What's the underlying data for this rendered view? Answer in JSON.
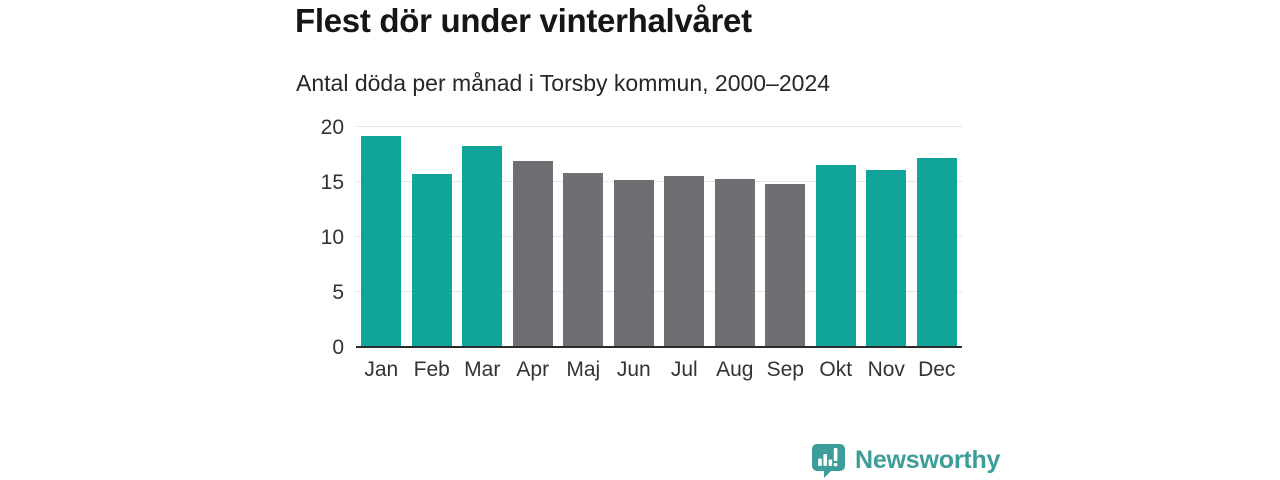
{
  "header": {
    "title": "Flest dör under vinterhalvåret",
    "subtitle": "Antal döda per månad i Torsby kommun, 2000–2024"
  },
  "chart_data": {
    "type": "bar",
    "title": "Flest dör under vinterhalvåret",
    "subtitle": "Antal döda per månad i Torsby kommun, 2000–2024",
    "categories": [
      "Jan",
      "Feb",
      "Mar",
      "Apr",
      "Maj",
      "Jun",
      "Jul",
      "Aug",
      "Sep",
      "Okt",
      "Nov",
      "Dec"
    ],
    "values": [
      19.1,
      15.6,
      18.2,
      16.8,
      15.7,
      15.1,
      15.5,
      15.2,
      14.7,
      16.5,
      16.0,
      17.1
    ],
    "bar_groups": [
      "winter",
      "winter",
      "winter",
      "summer",
      "summer",
      "summer",
      "summer",
      "summer",
      "summer",
      "winter",
      "winter",
      "winter"
    ],
    "colors": {
      "winter": "#11a49b",
      "summer": "#6e6e73"
    },
    "xlabel": "",
    "ylabel": "",
    "ylim": [
      0,
      20
    ],
    "yticks": [
      0,
      5,
      10,
      15,
      20
    ],
    "grid": true,
    "legend": false,
    "axis_color": "#2b2b2b",
    "gridline_color": "#e6e6e6",
    "tick_label_color": "#333333"
  },
  "footer": {
    "brand": "Newsworthy",
    "brand_color": "#3c9e9a",
    "logo_icon": "bar-chart-speech-bubble-icon"
  }
}
